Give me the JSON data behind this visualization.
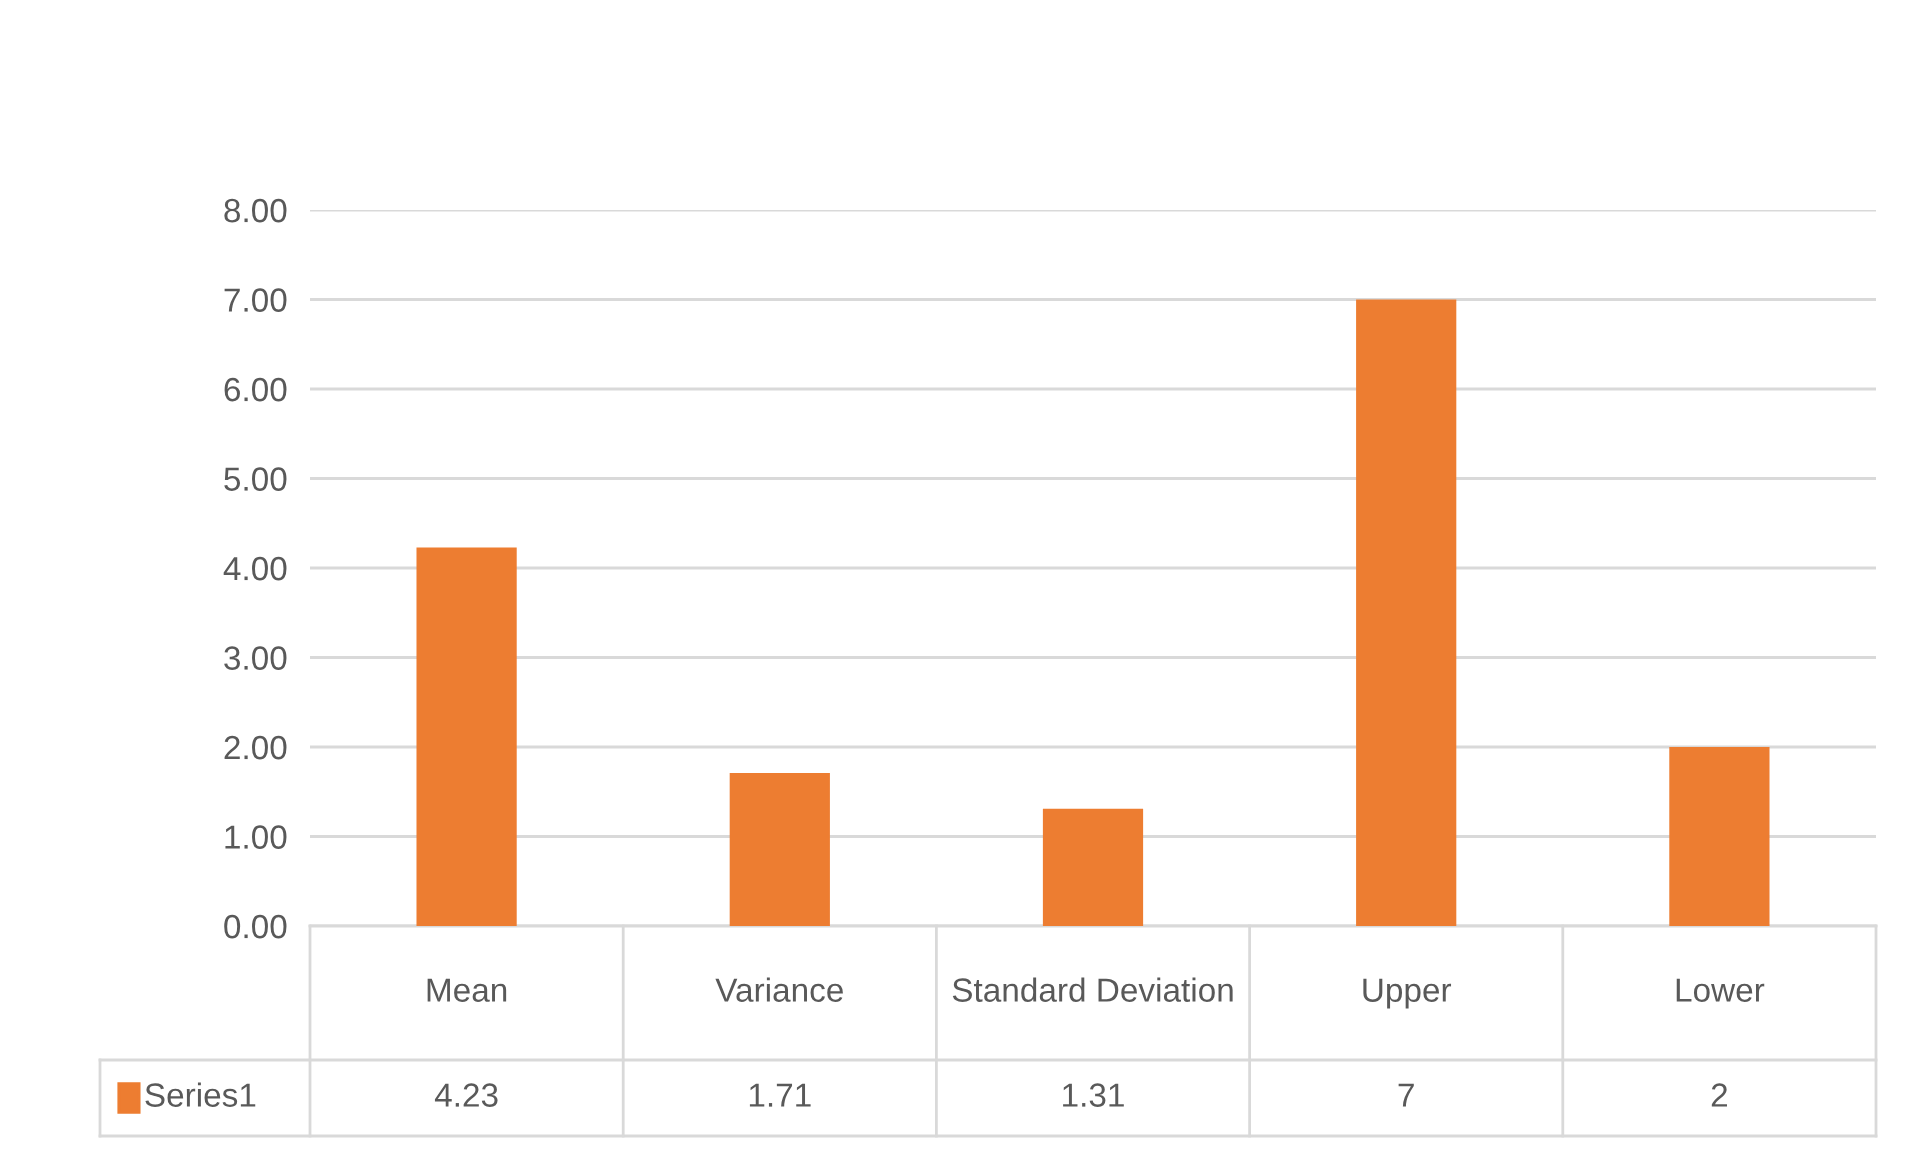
{
  "chart_data": {
    "type": "bar",
    "categories": [
      "Mean",
      "Variance",
      "Standard Deviation",
      "Upper",
      "Lower"
    ],
    "series": [
      {
        "name": "Series1",
        "color": "#ed7d31",
        "values": [
          4.23,
          1.71,
          1.31,
          7,
          2
        ]
      }
    ],
    "ylim": [
      0,
      8
    ],
    "yticks": [
      {
        "value": 0,
        "label": "0.00"
      },
      {
        "value": 1,
        "label": "1.00"
      },
      {
        "value": 2,
        "label": "2.00"
      },
      {
        "value": 3,
        "label": "3.00"
      },
      {
        "value": 4,
        "label": "4.00"
      },
      {
        "value": 5,
        "label": "5.00"
      },
      {
        "value": 6,
        "label": "6.00"
      },
      {
        "value": 7,
        "label": "7.00"
      },
      {
        "value": 8,
        "label": "8.00"
      }
    ],
    "grid": "y",
    "data_labels": true,
    "legend": "bottom"
  }
}
